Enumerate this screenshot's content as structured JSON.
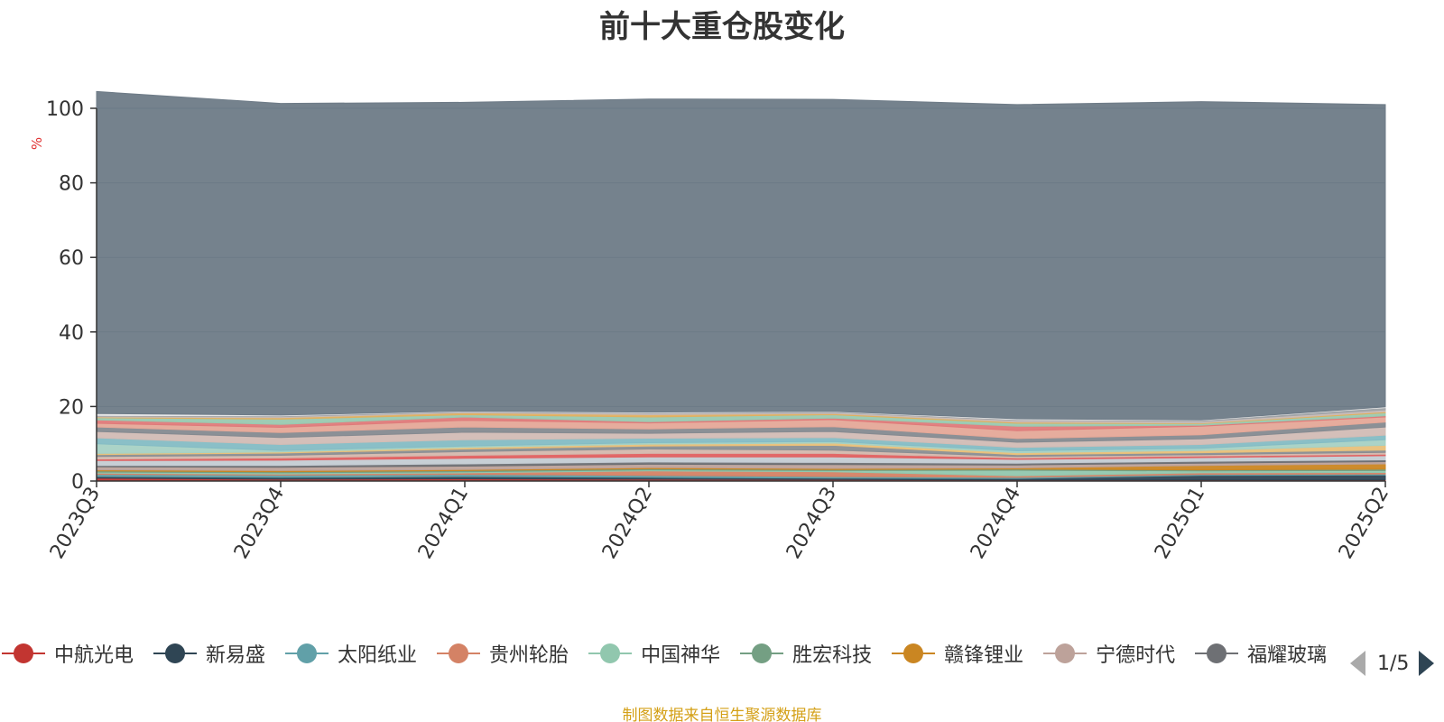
{
  "chart_data": {
    "type": "area",
    "title": "前十大重仓股变化",
    "ylabel": "%",
    "ylim": [
      0,
      100
    ],
    "yticks": [
      0,
      20,
      40,
      60,
      80,
      100
    ],
    "grid": true,
    "legend_position": "bottom",
    "x": [
      "2023Q3",
      "2023Q4",
      "2024Q1",
      "2024Q2",
      "2024Q3",
      "2024Q4",
      "2025Q1",
      "2025Q2"
    ],
    "series": [
      {
        "name": "中航光电",
        "color": "#c23531",
        "values": [
          0.8,
          0.5,
          0.6,
          0.5,
          0.4,
          0.3,
          0.3,
          0.3
        ]
      },
      {
        "name": "新易盛",
        "color": "#2f4554",
        "values": [
          0.4,
          0.5,
          0.6,
          0.5,
          0.4,
          0.4,
          1.2,
          1.3
        ]
      },
      {
        "name": "太阳纸业",
        "color": "#61a0a8",
        "values": [
          0.6,
          0.6,
          0.6,
          0.5,
          0.4,
          0.3,
          0.3,
          0.3
        ]
      },
      {
        "name": "贵州轮胎",
        "color": "#d48265",
        "values": [
          0.3,
          0.3,
          0.4,
          1.2,
          1.3,
          0.4,
          0.4,
          0.4
        ]
      },
      {
        "name": "中国神华",
        "color": "#91c7ae",
        "values": [
          0.3,
          0.3,
          0.3,
          0.3,
          0.3,
          1.5,
          0.5,
          0.5
        ]
      },
      {
        "name": "胜宏科技",
        "color": "#749f83",
        "values": [
          0.3,
          0.3,
          0.3,
          0.3,
          0.3,
          0.3,
          0.3,
          0.4
        ]
      },
      {
        "name": "赣锋锂业",
        "color": "#ca8622",
        "values": [
          0.3,
          0.3,
          0.3,
          0.3,
          0.3,
          0.3,
          1.2,
          1.4
        ]
      },
      {
        "name": "宁德时代",
        "color": "#bda29a",
        "values": [
          0.8,
          0.9,
          0.9,
          0.9,
          1.0,
          0.8,
          0.6,
          0.6
        ]
      },
      {
        "name": "福耀玻璃",
        "color": "#6e7074",
        "values": [
          0.4,
          0.5,
          0.6,
          0.6,
          0.6,
          0.5,
          0.5,
          0.5
        ]
      },
      {
        "name": "",
        "color": "#c4ccd3",
        "values": [
          1.3,
          1.4,
          1.5,
          1.4,
          1.5,
          1.0,
          1.0,
          1.1
        ]
      },
      {
        "name": "",
        "color": "#e06060",
        "values": [
          0.4,
          0.6,
          0.8,
          0.9,
          0.9,
          0.4,
          0.4,
          0.4
        ]
      },
      {
        "name": "",
        "color": "#d4b8ad",
        "values": [
          0.7,
          0.7,
          1.0,
          1.2,
          0.9,
          0.4,
          0.4,
          0.5
        ]
      },
      {
        "name": "",
        "color": "#8a8e92",
        "values": [
          0.5,
          0.6,
          0.7,
          0.8,
          1.3,
          0.5,
          0.5,
          0.6
        ]
      },
      {
        "name": "",
        "color": "#e8c07a",
        "values": [
          0.3,
          0.3,
          0.4,
          0.5,
          0.6,
          0.5,
          0.6,
          1.3
        ]
      },
      {
        "name": "",
        "color": "#a6d1c4",
        "values": [
          2.6,
          0.4,
          0.4,
          0.4,
          0.4,
          0.5,
          0.6,
          1.5
        ]
      },
      {
        "name": "",
        "color": "#84bcc4",
        "values": [
          1.6,
          1.6,
          1.7,
          1.2,
          1.1,
          0.9,
          1.0,
          1.2
        ]
      },
      {
        "name": "",
        "color": "#d2bcb5",
        "values": [
          1.7,
          1.9,
          2.0,
          1.3,
          1.6,
          1.4,
          1.5,
          2.2
        ]
      },
      {
        "name": "",
        "color": "#858a90",
        "values": [
          1.2,
          1.3,
          1.4,
          1.2,
          1.3,
          1.0,
          1.1,
          1.3
        ]
      },
      {
        "name": "",
        "color": "#e5a898",
        "values": [
          1.0,
          1.4,
          1.8,
          1.6,
          1.9,
          2.1,
          2.3,
          1.4
        ]
      },
      {
        "name": "",
        "color": "#df7a7a",
        "values": [
          0.9,
          0.8,
          0.9,
          0.3,
          0.4,
          1.2,
          0.3,
          0.3
        ]
      },
      {
        "name": "",
        "color": "#9ac9b0",
        "values": [
          0.6,
          1.4,
          0.6,
          1.3,
          0.9,
          0.8,
          0.4,
          0.8
        ]
      },
      {
        "name": "",
        "color": "#e0b060",
        "values": [
          0.2,
          0.4,
          0.5,
          0.6,
          0.3,
          0.3,
          0.2,
          0.3
        ]
      },
      {
        "name": "",
        "color": "#c8bbb6",
        "values": [
          0.2,
          0.3,
          0.2,
          0.3,
          0.3,
          0.5,
          0.4,
          0.5
        ]
      },
      {
        "name": "",
        "color": "#a0a4a8",
        "values": [
          0.2,
          0.2,
          0.2,
          0.2,
          0.2,
          0.2,
          0.3,
          0.6
        ]
      },
      {
        "name": "",
        "color": "#e8e8e8",
        "values": [
          0.5,
          0.2,
          0.1,
          0.2,
          0.1,
          0.2,
          0.1,
          0.2
        ]
      },
      {
        "name": "",
        "color": "#6e7b87",
        "values": [
          86.4,
          83.6,
          82.8,
          84.0,
          83.7,
          84.3,
          85.4,
          81.1
        ]
      }
    ]
  },
  "legend": {
    "items": [
      {
        "label": "中航光电",
        "color": "#c23531"
      },
      {
        "label": "新易盛",
        "color": "#2f4554"
      },
      {
        "label": "太阳纸业",
        "color": "#61a0a8"
      },
      {
        "label": "贵州轮胎",
        "color": "#d48265"
      },
      {
        "label": "中国神华",
        "color": "#91c7ae"
      },
      {
        "label": "胜宏科技",
        "color": "#749f83"
      },
      {
        "label": "赣锋锂业",
        "color": "#ca8622"
      },
      {
        "label": "宁德时代",
        "color": "#bda29a"
      },
      {
        "label": "福耀玻璃",
        "color": "#6e7074"
      }
    ],
    "page_label": "1/5"
  },
  "footer": {
    "source": "制图数据来自恒生聚源数据库"
  }
}
